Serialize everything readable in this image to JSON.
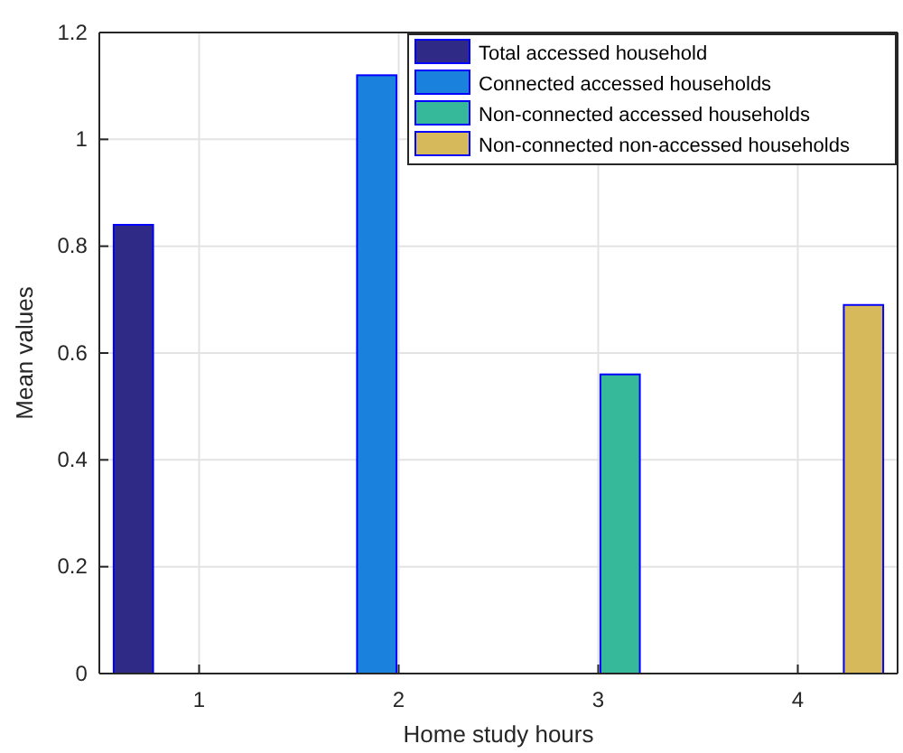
{
  "chart_data": {
    "type": "bar",
    "xlabel": "Home study hours",
    "ylabel": "Mean values",
    "categories": [
      "1",
      "2",
      "3",
      "4"
    ],
    "series": [
      {
        "name": "Total accessed household",
        "color": "#2e2a86",
        "values": [
          0.84,
          0,
          0,
          0
        ]
      },
      {
        "name": "Connected accessed households",
        "color": "#1a82dc",
        "values": [
          0,
          1.12,
          0,
          0
        ]
      },
      {
        "name": "Non-connected accessed households",
        "color": "#36b99a",
        "values": [
          0,
          0,
          0.56,
          0
        ]
      },
      {
        "name": "Non-connected non-accessed households",
        "color": "#d6b95a",
        "values": [
          0,
          0,
          0,
          0.69
        ]
      }
    ],
    "ylim": [
      0,
      1.2
    ],
    "yticks": [
      0,
      0.2,
      0.4,
      0.6,
      0.8,
      1,
      1.2
    ],
    "grid": true,
    "legend": "top right"
  }
}
